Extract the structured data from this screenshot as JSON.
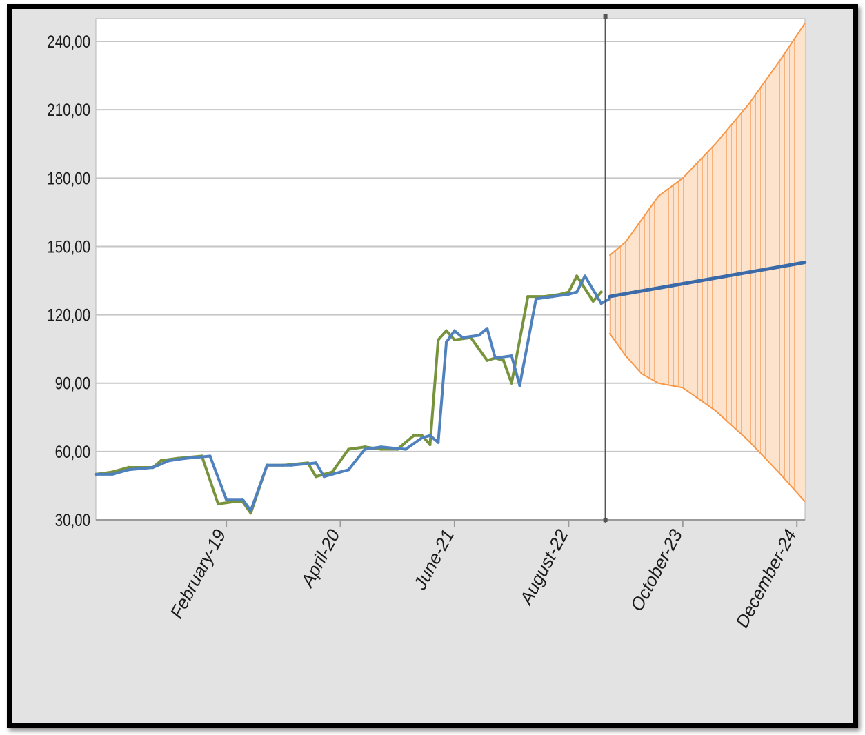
{
  "chart_data": {
    "type": "line",
    "title": "",
    "xlabel": "",
    "ylabel": "",
    "ylim": [
      30,
      250
    ],
    "yticks": [
      "30,00",
      "60,00",
      "90,00",
      "120,00",
      "150,00",
      "180,00",
      "210,00",
      "240,00"
    ],
    "ytick_values": [
      30,
      60,
      90,
      120,
      150,
      180,
      210,
      240
    ],
    "xticks": [
      "February-19",
      "April-20",
      "June-21",
      "August-22",
      "October-23",
      "December-24"
    ],
    "xtick_dates": [
      "2019-02",
      "2020-04",
      "2021-06",
      "2022-08",
      "2023-10",
      "2024-12"
    ],
    "xlim": [
      "2017-10",
      "2025-01"
    ],
    "forecast_start": "2022-12",
    "grid": true,
    "legend": "none",
    "series": [
      {
        "color": "#77933c",
        "points": [
          [
            "2017-10",
            50
          ],
          [
            "2017-12",
            51
          ],
          [
            "2018-02",
            53
          ],
          [
            "2018-05",
            53
          ],
          [
            "2018-06",
            56
          ],
          [
            "2018-08",
            57
          ],
          [
            "2018-11",
            58
          ],
          [
            "2019-01",
            37
          ],
          [
            "2019-03",
            38
          ],
          [
            "2019-04",
            38
          ],
          [
            "2019-05",
            33
          ],
          [
            "2019-07",
            54
          ],
          [
            "2019-09",
            54
          ],
          [
            "2019-12",
            55
          ],
          [
            "2020-01",
            49
          ],
          [
            "2020-02",
            50
          ],
          [
            "2020-03",
            51
          ],
          [
            "2020-05",
            61
          ],
          [
            "2020-07",
            62
          ],
          [
            "2020-09",
            61
          ],
          [
            "2020-11",
            61
          ],
          [
            "2021-01",
            67
          ],
          [
            "2021-02",
            67
          ],
          [
            "2021-03",
            63
          ],
          [
            "2021-04",
            109
          ],
          [
            "2021-05",
            113
          ],
          [
            "2021-06",
            109
          ],
          [
            "2021-08",
            110
          ],
          [
            "2021-10",
            100
          ],
          [
            "2021-11",
            101
          ],
          [
            "2021-12",
            100
          ],
          [
            "2022-01",
            90
          ],
          [
            "2022-03",
            128
          ],
          [
            "2022-05",
            128
          ],
          [
            "2022-07",
            129
          ],
          [
            "2022-08",
            130
          ],
          [
            "2022-09",
            137
          ],
          [
            "2022-11",
            126
          ],
          [
            "2022-12",
            130
          ]
        ]
      },
      {
        "color": "#4f81bd",
        "points": [
          [
            "2017-10",
            50
          ],
          [
            "2017-12",
            50
          ],
          [
            "2018-02",
            52
          ],
          [
            "2018-05",
            53
          ],
          [
            "2018-07",
            56
          ],
          [
            "2018-09",
            57
          ],
          [
            "2018-12",
            58
          ],
          [
            "2019-02",
            39
          ],
          [
            "2019-04",
            39
          ],
          [
            "2019-05",
            34
          ],
          [
            "2019-07",
            54
          ],
          [
            "2019-10",
            54
          ],
          [
            "2020-01",
            55
          ],
          [
            "2020-02",
            49
          ],
          [
            "2020-04",
            51
          ],
          [
            "2020-05",
            52
          ],
          [
            "2020-07",
            61
          ],
          [
            "2020-09",
            62
          ],
          [
            "2020-12",
            61
          ],
          [
            "2021-02",
            66
          ],
          [
            "2021-03",
            67
          ],
          [
            "2021-04",
            64
          ],
          [
            "2021-05",
            108
          ],
          [
            "2021-06",
            113
          ],
          [
            "2021-07",
            110
          ],
          [
            "2021-09",
            111
          ],
          [
            "2021-10",
            114
          ],
          [
            "2021-11",
            101
          ],
          [
            "2022-01",
            102
          ],
          [
            "2022-02",
            89
          ],
          [
            "2022-04",
            127
          ],
          [
            "2022-06",
            128
          ],
          [
            "2022-08",
            129
          ],
          [
            "2022-09",
            130
          ],
          [
            "2022-10",
            137
          ],
          [
            "2022-12",
            125
          ],
          [
            "2023-01",
            127
          ]
        ]
      },
      {
        "color": "#3a6aa8",
        "points": [
          [
            "2023-01",
            128
          ],
          [
            "2025-01",
            143
          ]
        ]
      }
    ],
    "band": {
      "color": "#f79646",
      "upper": [
        [
          "2023-01",
          146
        ],
        [
          "2023-03",
          152
        ],
        [
          "2023-05",
          162
        ],
        [
          "2023-07",
          172
        ],
        [
          "2023-10",
          180
        ],
        [
          "2024-02",
          195
        ],
        [
          "2024-06",
          212
        ],
        [
          "2024-10",
          232
        ],
        [
          "2025-01",
          248
        ]
      ],
      "lower": [
        [
          "2023-01",
          112
        ],
        [
          "2023-03",
          102
        ],
        [
          "2023-05",
          94
        ],
        [
          "2023-07",
          90
        ],
        [
          "2023-10",
          88
        ],
        [
          "2024-02",
          78
        ],
        [
          "2024-06",
          65
        ],
        [
          "2024-10",
          50
        ],
        [
          "2025-01",
          38
        ]
      ]
    }
  }
}
